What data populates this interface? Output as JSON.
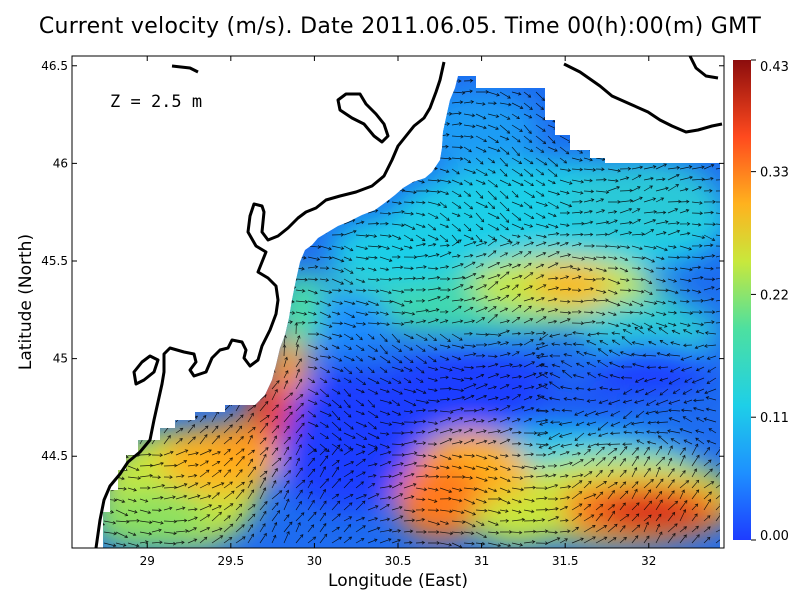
{
  "title": "Current velocity (m/s). Date 2011.06.05. Time 00(h):00(m) GMT",
  "annotation": "Z = 2.5 m",
  "chart_data": {
    "type": "heatmap",
    "title": "Current velocity (m/s). Date 2011.06.05. Time 00(h):00(m) GMT",
    "xlabel": "Longitude (East)",
    "ylabel": "Latitude (North)",
    "xlim": [
      28.55,
      32.45
    ],
    "ylim": [
      44.03,
      46.55
    ],
    "x_ticks": [
      "29",
      "29.5",
      "30",
      "30.5",
      "31",
      "31.5",
      "32"
    ],
    "x_tick_values": [
      29,
      29.5,
      30,
      30.5,
      31,
      31.5,
      32
    ],
    "y_ticks": [
      "44.5",
      "45",
      "45.5",
      "46",
      "46.5"
    ],
    "y_tick_values": [
      44.5,
      45,
      45.5,
      46,
      46.5
    ],
    "colorbar": {
      "min": 0.0,
      "max": 0.43,
      "tick_labels": [
        "0.00",
        "0.11",
        "0.22",
        "0.33",
        "0.43"
      ],
      "tick_values": [
        0.0,
        0.11,
        0.22,
        0.33,
        0.43
      ],
      "colors": [
        "#1e3cff",
        "#1e90ff",
        "#1ecfe8",
        "#4de0a0",
        "#c8e83c",
        "#ffb21e",
        "#ff4a1e",
        "#8c0d0d"
      ]
    },
    "grid": false,
    "high_speed_regions": [
      {
        "lon": 31.9,
        "lat": 44.2,
        "speed": 0.43
      },
      {
        "lon": 29.65,
        "lat": 44.75,
        "speed": 0.43
      },
      {
        "lon": 31.45,
        "lat": 45.42,
        "speed": 0.33
      }
    ],
    "low_speed_regions": [
      {
        "lon": 30.35,
        "lat": 44.6,
        "speed": 0.02
      },
      {
        "lon": 31.1,
        "lat": 44.95,
        "speed": 0.02
      },
      {
        "lon": 31.9,
        "lat": 44.9,
        "speed": 0.02
      }
    ]
  }
}
